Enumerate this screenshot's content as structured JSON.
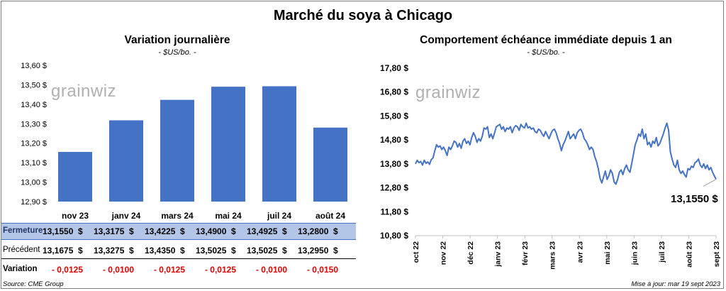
{
  "title": "Marché du soya à Chicago",
  "logo_text": "grainwiz",
  "left_panel": {
    "title": "Variation  journalière",
    "unit": "- $US/bo. -"
  },
  "right_panel": {
    "title": "Comportement  échéance immédiate depuis 1 an",
    "unit": "- $US/bo. -",
    "last_value_label": "13,1550 $"
  },
  "colors": {
    "bar": "#4472c4",
    "line": "#4472c4",
    "negative": "#e00000",
    "highlight_row": "#b4c6e7"
  },
  "chart_data": [
    {
      "type": "bar",
      "categories": [
        "nov 23",
        "janv 24",
        "mars 24",
        "mai 24",
        "juil 24",
        "août 24"
      ],
      "values": [
        13.155,
        13.3175,
        13.4225,
        13.49,
        13.4925,
        13.28
      ],
      "ylim": [
        12.9,
        13.6
      ],
      "yticks": [
        "12,90 $",
        "13,00 $",
        "13,10 $",
        "13,20 $",
        "13,30 $",
        "13,40 $",
        "13,50 $",
        "13,60 $"
      ],
      "grid": false
    },
    {
      "type": "line",
      "ylim": [
        10.8,
        17.8
      ],
      "yticks": [
        "10,80 $",
        "11,80 $",
        "12,80 $",
        "13,80 $",
        "14,80 $",
        "15,80 $",
        "16,80 $",
        "17,80 $"
      ],
      "xticks": [
        "oct 22",
        "nov 22",
        "déc 22",
        "janv 23",
        "févr 23",
        "mars 23",
        "avr 23",
        "mai 23",
        "juin 23",
        "juil 23",
        "août 23",
        "sept 23"
      ],
      "series": [
        {
          "values": [
            13.8,
            13.95,
            13.85,
            13.9,
            13.75,
            13.95,
            13.82,
            13.88,
            13.78,
            13.98,
            14.05,
            14.35,
            14.6,
            14.5,
            14.55,
            14.4,
            14.5,
            14.35,
            14.15,
            14.5,
            14.4,
            14.55,
            14.75,
            14.7,
            14.5,
            14.65,
            14.45,
            14.75,
            14.85,
            14.65,
            14.75,
            14.6,
            14.9,
            15.1,
            14.95,
            14.7,
            14.85,
            14.75,
            14.95,
            15.3,
            15.25,
            15.35,
            14.9,
            15.05,
            14.85,
            15.1,
            15.35,
            15.4,
            15.45,
            15.25,
            15.35,
            15.15,
            15.3,
            15.25,
            15.35,
            15.1,
            15.3,
            15.4,
            15.35,
            15.2,
            15.45,
            15.35,
            15.3,
            15.5,
            15.3,
            15.35,
            15.25,
            15.3,
            15.15,
            15.1,
            15.25,
            15.2,
            15.05,
            14.95,
            15.15,
            15.0,
            14.85,
            15.05,
            15.2,
            15.25,
            15.1,
            14.85,
            14.65,
            14.35,
            14.6,
            14.75,
            14.95,
            15.15,
            14.85,
            14.95,
            15.05,
            14.85,
            15.1,
            15.2,
            15.25,
            15.1,
            14.85,
            14.75,
            14.6,
            14.4,
            14.5,
            14.4,
            14.1,
            13.9,
            13.6,
            13.2,
            13.0,
            13.25,
            13.5,
            13.15,
            13.3,
            13.55,
            13.4,
            13.05,
            12.95,
            13.15,
            13.45,
            13.55,
            13.35,
            13.6,
            13.75,
            13.55,
            13.45,
            13.8,
            14.2,
            14.6,
            14.8,
            15.05,
            14.95,
            15.25,
            14.85,
            15.05,
            14.6,
            14.7,
            14.5,
            14.75,
            14.65,
            14.9,
            14.55,
            14.65,
            14.85,
            15.05,
            15.3,
            15.5,
            15.2,
            14.3,
            14.0,
            13.75,
            13.65,
            13.95,
            13.55,
            13.4,
            13.5,
            13.35,
            13.25,
            13.6,
            13.55,
            13.7,
            13.65,
            13.85,
            13.9,
            14.0,
            13.75,
            13.65,
            13.8,
            13.6,
            13.75,
            13.55,
            13.65,
            13.45,
            13.3,
            13.155
          ]
        }
      ]
    }
  ],
  "table": {
    "rows": [
      {
        "label": "Fermeture",
        "values": [
          "13,1550",
          "13,3175",
          "13,4225",
          "13,4900",
          "13,4925",
          "13,2800"
        ],
        "unit": "$"
      },
      {
        "label": "Précédent",
        "values": [
          "13,1675",
          "13,3275",
          "13,4350",
          "13,5025",
          "13,5025",
          "13,2950"
        ],
        "unit": "$"
      },
      {
        "label": "Variation",
        "values": [
          "- 0,0125",
          "- 0,0100",
          "- 0,0125",
          "- 0,0125",
          "- 0,0100",
          "- 0,0150"
        ],
        "unit": ""
      }
    ]
  },
  "footer": {
    "source": "Source: CME Group",
    "updated": "Mise à jour: mar 19 sept 2023"
  }
}
